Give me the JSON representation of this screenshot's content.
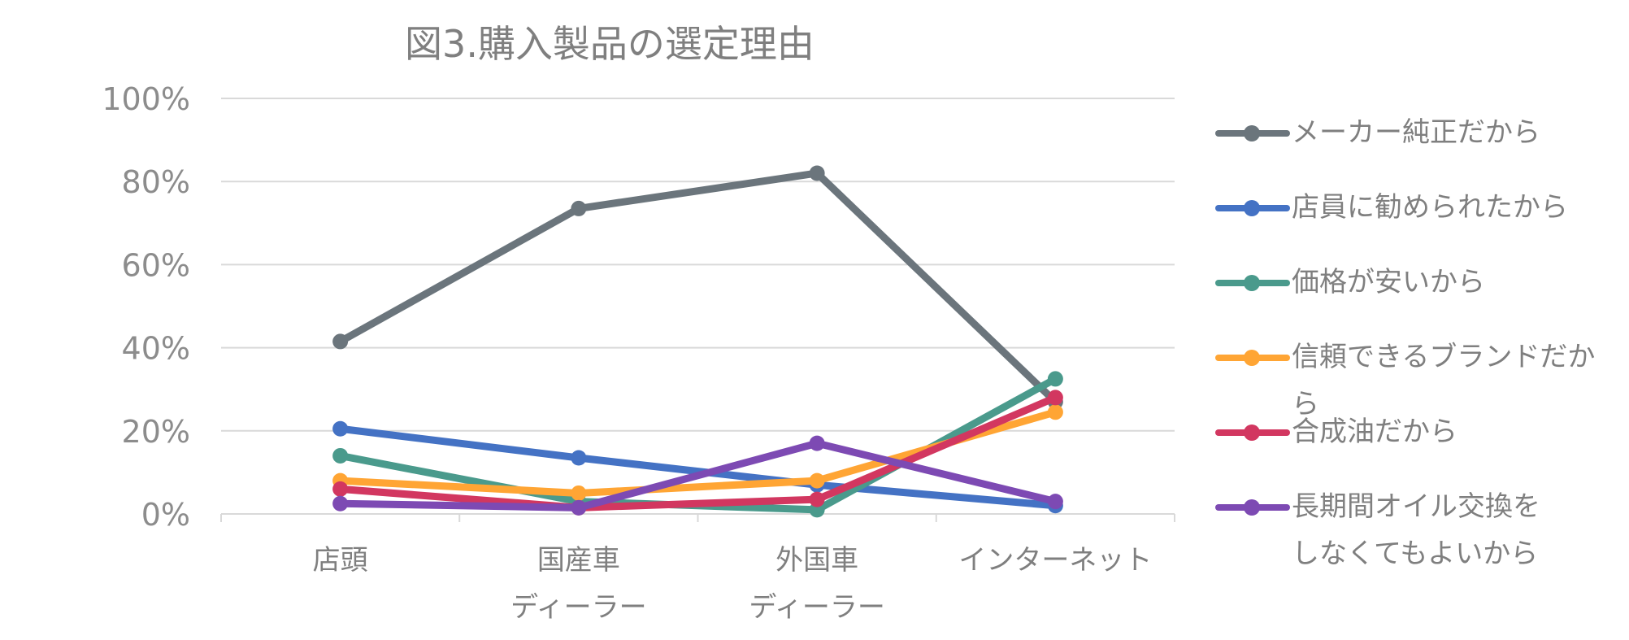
{
  "chart_data": {
    "type": "line",
    "title": "図3.購入製品の選定理由",
    "categories": [
      {
        "line1": "店頭",
        "line2": ""
      },
      {
        "line1": "国産車",
        "line2": "ディーラー"
      },
      {
        "line1": "外国車",
        "line2": "ディーラー"
      },
      {
        "line1": "インターネット",
        "line2": ""
      }
    ],
    "ylim": [
      0,
      100
    ],
    "yticks": [
      "0%",
      "20%",
      "40%",
      "60%",
      "80%",
      "100%"
    ],
    "grid": true,
    "legend_position": "right",
    "series": [
      {
        "name": "メーカー純正だから",
        "color": "#6b757c",
        "values": [
          41.5,
          73.5,
          82,
          27
        ]
      },
      {
        "name": "店員に勧められたから",
        "color": "#4472c4",
        "values": [
          20.5,
          13.5,
          7,
          2
        ]
      },
      {
        "name": "価格が安いから",
        "color": "#4a9a8c",
        "values": [
          14,
          3,
          1,
          32.5
        ]
      },
      {
        "name": "信頼できるブランドだから",
        "color": "#ffa534",
        "values": [
          8,
          5,
          8,
          24.5
        ]
      },
      {
        "name": "合成油だから",
        "color": "#d23760",
        "values": [
          6,
          1.5,
          3.5,
          28
        ]
      },
      {
        "name": "長期間オイル交換を\nしなくてもよいから",
        "color": "#7d4ab3",
        "values": [
          2.5,
          1.5,
          17,
          3
        ]
      }
    ]
  }
}
